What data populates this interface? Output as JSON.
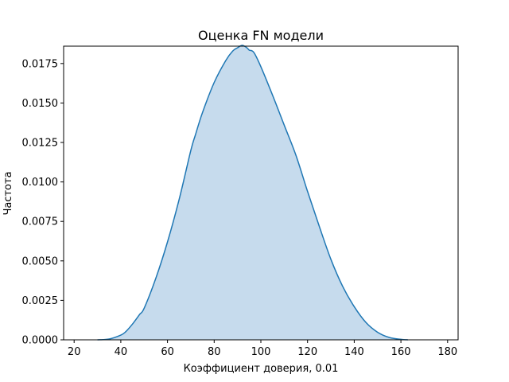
{
  "chart_data": {
    "type": "area",
    "title": "Оценка FN модели",
    "xlabel": "Коэффициент доверия, 0.01",
    "ylabel": "Частота",
    "xlim": [
      15.5,
      184.5
    ],
    "ylim": [
      0,
      0.0186
    ],
    "x_ticks": [
      "20",
      "40",
      "60",
      "80",
      "100",
      "120",
      "140",
      "160",
      "180"
    ],
    "y_ticks": [
      "0.0000",
      "0.0025",
      "0.0050",
      "0.0075",
      "0.0100",
      "0.0125",
      "0.0150",
      "0.0175"
    ],
    "grid": false,
    "legend": "none",
    "series": [
      {
        "color": "#1f77b4",
        "fill_color": "#c6dbed",
        "x": [
          30,
          35,
          40,
          42,
          45,
          48,
          50,
          55,
          60,
          65,
          70,
          72,
          75,
          80,
          85,
          88,
          90,
          92,
          94,
          95,
          97,
          100,
          105,
          110,
          115,
          120,
          125,
          130,
          135,
          140,
          145,
          150,
          155,
          160,
          163
        ],
        "y": [
          0.0,
          5e-05,
          0.0003,
          0.0005,
          0.001,
          0.0016,
          0.002,
          0.0039,
          0.0062,
          0.0089,
          0.012,
          0.013,
          0.0144,
          0.0163,
          0.0177,
          0.0183,
          0.0185,
          0.01865,
          0.0185,
          0.01835,
          0.0182,
          0.0173,
          0.0155,
          0.0136,
          0.0117,
          0.0094,
          0.0072,
          0.0051,
          0.0034,
          0.0021,
          0.0011,
          0.00048,
          0.00015,
          3e-05,
          0.0
        ]
      }
    ]
  }
}
